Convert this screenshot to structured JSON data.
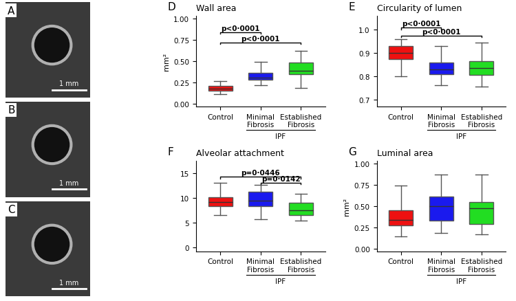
{
  "chart_data": [
    {
      "type": "image",
      "panel": "A",
      "scale_bar": "1 mm"
    },
    {
      "type": "image",
      "panel": "B",
      "scale_bar": "1 mm"
    },
    {
      "type": "image",
      "panel": "C",
      "scale_bar": "1 mm"
    },
    {
      "type": "box",
      "panel": "D",
      "title": "Wall area",
      "y_label": "mm²",
      "categories": [
        "Control",
        "Minimal\nFibrosis",
        "Established\nFibrosis"
      ],
      "colors": [
        "#ee1111",
        "#1a1aee",
        "#22dd22"
      ],
      "group": {
        "label": "IPF",
        "members": [
          "Minimal\nFibrosis",
          "Established\nFibrosis"
        ]
      },
      "boxes": [
        {
          "whislo": 0.11,
          "q1": 0.15,
          "med": 0.18,
          "q3": 0.21,
          "whishi": 0.27
        },
        {
          "whislo": 0.22,
          "q1": 0.28,
          "med": 0.31,
          "q3": 0.36,
          "whishi": 0.49
        },
        {
          "whislo": 0.19,
          "q1": 0.35,
          "med": 0.39,
          "q3": 0.48,
          "whishi": 0.62
        }
      ],
      "comparisons": [
        {
          "from": "Control",
          "to": "Minimal\nFibrosis",
          "y": 0.84,
          "label": "p<0·0001"
        },
        {
          "from": "Control",
          "to": "Established\nFibrosis",
          "y": 0.72,
          "label": "p<0·0001"
        }
      ],
      "ylim": [
        -0.03,
        1.03
      ],
      "yticks": [
        {
          "value": 0,
          "label": "0.00"
        },
        {
          "value": 0.25,
          "label": "0.25"
        },
        {
          "value": 0.5,
          "label": "0.50"
        },
        {
          "value": 0.75,
          "label": "0.75"
        },
        {
          "value": 1,
          "label": "1.00"
        }
      ]
    },
    {
      "type": "box",
      "panel": "E",
      "title": "Circularity of lumen",
      "categories": [
        "Control",
        "Minimal\nFibrosis",
        "Established\nFibrosis"
      ],
      "colors": [
        "#ee1111",
        "#1a1aee",
        "#22dd22"
      ],
      "group": {
        "label": "IPF",
        "members": [
          "Minimal\nFibrosis",
          "Established\nFibrosis"
        ]
      },
      "boxes": [
        {
          "whislo": 0.8,
          "q1": 0.875,
          "med": 0.9,
          "q3": 0.93,
          "whishi": 0.96
        },
        {
          "whislo": 0.76,
          "q1": 0.81,
          "med": 0.83,
          "q3": 0.86,
          "whishi": 0.93
        },
        {
          "whislo": 0.755,
          "q1": 0.805,
          "med": 0.835,
          "q3": 0.865,
          "whishi": 0.945
        }
      ],
      "comparisons": [
        {
          "from": "Control",
          "to": "Minimal\nFibrosis",
          "y": 1.01,
          "label": "p<0·0001"
        },
        {
          "from": "Control",
          "to": "Established\nFibrosis",
          "y": 0.975,
          "label": "p<0·0001"
        }
      ],
      "ylim": [
        0.67,
        1.06
      ],
      "yticks": [
        {
          "value": 0.7,
          "label": "0.7"
        },
        {
          "value": 0.8,
          "label": "0.8"
        },
        {
          "value": 0.9,
          "label": "0.9"
        },
        {
          "value": 1.0,
          "label": "1.0"
        }
      ]
    },
    {
      "type": "box",
      "panel": "F",
      "title": "Alveolar attachment",
      "categories": [
        "Control",
        "Minimal\nFibrosis",
        "Established\nFibrosis"
      ],
      "colors": [
        "#ee1111",
        "#1a1aee",
        "#22dd22"
      ],
      "group": {
        "label": "IPF",
        "members": [
          "Minimal\nFibrosis",
          "Established\nFibrosis"
        ]
      },
      "boxes": [
        {
          "whislo": 6.5,
          "q1": 8.3,
          "med": 9.2,
          "q3": 10.1,
          "whishi": 13.0
        },
        {
          "whislo": 5.8,
          "q1": 8.3,
          "med": 9.4,
          "q3": 11.3,
          "whishi": 12.6
        },
        {
          "whislo": 5.5,
          "q1": 6.6,
          "med": 7.6,
          "q3": 9.0,
          "whishi": 10.8
        }
      ],
      "comparisons": [
        {
          "from": "Control",
          "to": "Established\nFibrosis",
          "y": 14.3,
          "label": "p=0·0446"
        },
        {
          "from": "Minimal\nFibrosis",
          "to": "Established\nFibrosis",
          "y": 13.1,
          "label": "p=0·0142"
        }
      ],
      "ylim": [
        -0.7,
        17.5
      ],
      "yticks": [
        0,
        5,
        10,
        15
      ]
    },
    {
      "type": "box",
      "panel": "G",
      "title": "Luminal area",
      "y_label": "mm²",
      "categories": [
        "Control",
        "Minimal\nFibrosis",
        "Established\nFibrosis"
      ],
      "colors": [
        "#ee1111",
        "#1a1aee",
        "#22dd22"
      ],
      "group": {
        "label": "IPF",
        "members": [
          "Minimal\nFibrosis",
          "Established\nFibrosis"
        ]
      },
      "boxes": [
        {
          "whislo": 0.14,
          "q1": 0.27,
          "med": 0.34,
          "q3": 0.45,
          "whishi": 0.74
        },
        {
          "whislo": 0.18,
          "q1": 0.33,
          "med": 0.5,
          "q3": 0.61,
          "whishi": 0.87
        },
        {
          "whislo": 0.17,
          "q1": 0.29,
          "med": 0.47,
          "q3": 0.55,
          "whishi": 0.87
        }
      ],
      "comparisons": [],
      "ylim": [
        -0.03,
        1.03
      ],
      "yticks": [
        {
          "value": 0,
          "label": "0.00"
        },
        {
          "value": 0.25,
          "label": "0.25"
        },
        {
          "value": 0.5,
          "label": "0.50"
        },
        {
          "value": 0.75,
          "label": "0.75"
        },
        {
          "value": 1,
          "label": "1.00"
        }
      ]
    }
  ]
}
